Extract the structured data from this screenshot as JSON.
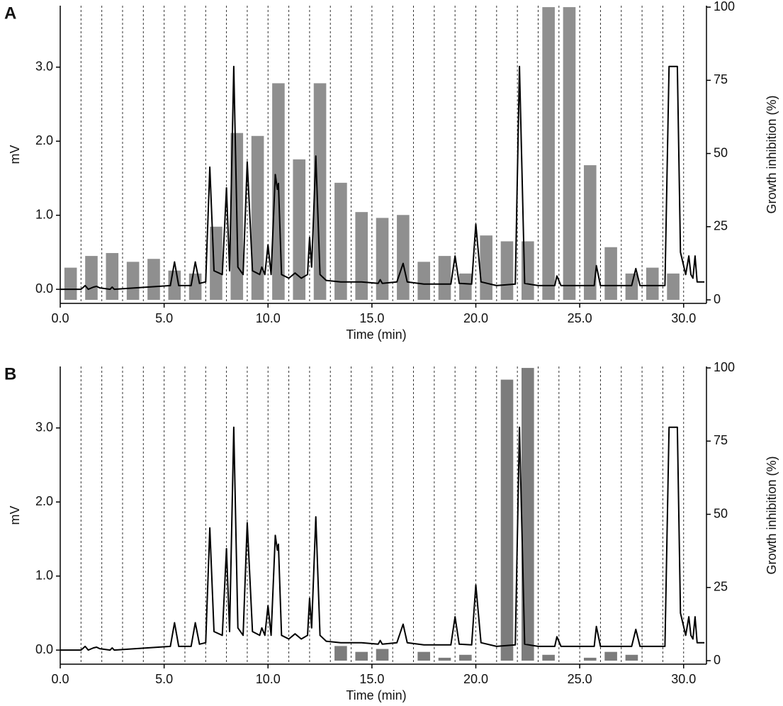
{
  "chart_data": [
    {
      "type": "combo",
      "panel_label": "A",
      "xlabel": "Time (min)",
      "ylabel": "mV",
      "y2label": "Growth inhibition (%)",
      "xlim": [
        0,
        31.1
      ],
      "ylim": [
        -0.19,
        3.83
      ],
      "y2lim": [
        -1.2,
        100.5
      ],
      "xticks": [
        {
          "value": 0,
          "label": "0.0"
        },
        {
          "value": 5,
          "label": "5.0"
        },
        {
          "value": 10,
          "label": "10.0"
        },
        {
          "value": 15,
          "label": "15.0"
        },
        {
          "value": 20,
          "label": "20.0"
        },
        {
          "value": 25,
          "label": "25.0"
        },
        {
          "value": 30,
          "label": "30.0"
        }
      ],
      "yticks": [
        {
          "value": 0,
          "label": "0.0"
        },
        {
          "value": 1,
          "label": "1.0"
        },
        {
          "value": 2,
          "label": "2.0"
        },
        {
          "value": 3,
          "label": "3.0"
        }
      ],
      "y2ticks": [
        0,
        25,
        50,
        75,
        100
      ],
      "xgrid": [
        1,
        2,
        3,
        4,
        5,
        6,
        7,
        8,
        9,
        10,
        11,
        12,
        13,
        14,
        15,
        16,
        17,
        18,
        19,
        20,
        21,
        22,
        23,
        24,
        25,
        26,
        27,
        28,
        29,
        30
      ],
      "series": [
        {
          "type": "bar",
          "axis": "y2",
          "color": "#8f8f8f",
          "x": [
            0.5,
            1.5,
            2.5,
            3.5,
            4.5,
            5.5,
            6.5,
            7.5,
            8.5,
            9.5,
            10.5,
            11.5,
            12.5,
            13.5,
            14.5,
            15.5,
            16.5,
            17.5,
            18.5,
            19.5,
            20.5,
            21.5,
            22.5,
            23.5,
            24.5,
            25.5,
            26.5,
            27.5,
            28.5,
            29.5
          ],
          "values": [
            11,
            15,
            16,
            13,
            14,
            10,
            9,
            25,
            57,
            56,
            74,
            48,
            74,
            40,
            30,
            28,
            29,
            13,
            15,
            9,
            22,
            20,
            20,
            100,
            100,
            46,
            18,
            9,
            11,
            9
          ]
        },
        {
          "type": "line",
          "color": "#000000",
          "x": [
            0,
            1.0,
            1.2,
            1.35,
            1.6,
            1.75,
            1.9,
            2.4,
            2.5,
            2.6,
            5.3,
            5.5,
            5.7,
            6.3,
            6.5,
            6.7,
            7.0,
            7.2,
            7.4,
            7.8,
            8.0,
            8.15,
            8.35,
            8.55,
            8.8,
            9.0,
            9.25,
            9.6,
            9.7,
            9.85,
            10.0,
            10.15,
            10.35,
            10.45,
            10.5,
            10.65,
            11.0,
            11.3,
            11.6,
            11.9,
            12.0,
            12.1,
            12.3,
            12.5,
            12.8,
            13.5,
            14.5,
            15.3,
            15.4,
            15.5,
            16.2,
            16.5,
            16.7,
            17.5,
            18.8,
            19.0,
            19.2,
            19.8,
            20.0,
            20.25,
            21.0,
            21.9,
            22.1,
            22.35,
            23.0,
            23.8,
            23.9,
            24.1,
            25.7,
            25.8,
            26.0,
            27.5,
            27.7,
            27.9,
            29.1,
            29.3,
            29.7,
            29.85,
            30.1,
            30.25,
            30.35,
            30.45,
            30.55,
            30.65,
            31.0
          ],
          "values": [
            0,
            0,
            0.05,
            0,
            0.03,
            0.04,
            0.02,
            0,
            0.03,
            0,
            0.05,
            0.37,
            0.05,
            0.05,
            0.37,
            0.08,
            0.1,
            1.65,
            0.25,
            0.2,
            1.37,
            0.25,
            3.01,
            0.3,
            0.2,
            1.72,
            0.25,
            0.2,
            0.3,
            0.2,
            0.6,
            0.2,
            1.55,
            1.35,
            1.43,
            0.2,
            0.15,
            0.22,
            0.15,
            0.2,
            0.7,
            0.3,
            1.8,
            0.2,
            0.12,
            0.1,
            0.1,
            0.08,
            0.13,
            0.08,
            0.1,
            0.35,
            0.1,
            0.07,
            0.07,
            0.45,
            0.08,
            0.07,
            0.88,
            0.1,
            0.05,
            0.07,
            3.01,
            0.08,
            0.05,
            0.05,
            0.18,
            0.05,
            0.05,
            0.32,
            0.05,
            0.05,
            0.28,
            0.05,
            0.05,
            3.01,
            3.01,
            0.5,
            0.2,
            0.45,
            0.2,
            0.15,
            0.45,
            0.1,
            0.1
          ]
        }
      ]
    },
    {
      "type": "combo",
      "panel_label": "B",
      "xlabel": "Time (min)",
      "ylabel": "mV",
      "y2label": "Growth inhibition (%)",
      "xlim": [
        0,
        31.1
      ],
      "ylim": [
        -0.19,
        3.83
      ],
      "y2lim": [
        -1.2,
        100.5
      ],
      "xticks": [
        {
          "value": 0,
          "label": "0.0"
        },
        {
          "value": 5,
          "label": "5.0"
        },
        {
          "value": 10,
          "label": "10.0"
        },
        {
          "value": 15,
          "label": "15.0"
        },
        {
          "value": 20,
          "label": "20.0"
        },
        {
          "value": 25,
          "label": "25.0"
        },
        {
          "value": 30,
          "label": "30.0"
        }
      ],
      "yticks": [
        {
          "value": 0,
          "label": "0.0"
        },
        {
          "value": 1,
          "label": "1.0"
        },
        {
          "value": 2,
          "label": "2.0"
        },
        {
          "value": 3,
          "label": "3.0"
        }
      ],
      "y2ticks": [
        0,
        25,
        50,
        75,
        100
      ],
      "xgrid": [
        1,
        2,
        3,
        4,
        5,
        6,
        7,
        8,
        9,
        10,
        11,
        12,
        13,
        14,
        15,
        16,
        17,
        18,
        19,
        20,
        21,
        22,
        23,
        24,
        25,
        26,
        27,
        28,
        29,
        30
      ],
      "series": [
        {
          "type": "bar",
          "axis": "y2",
          "color": "#7c7c7c",
          "x": [
            13.5,
            14.5,
            15.5,
            17.5,
            18.5,
            19.5,
            21.5,
            22.5,
            23.5,
            25.5,
            26.5,
            27.5
          ],
          "values": [
            5,
            3,
            4,
            3,
            1,
            2,
            96,
            100,
            2,
            1,
            3,
            2
          ]
        },
        {
          "type": "line",
          "color": "#000000",
          "x": [
            0,
            1.0,
            1.2,
            1.35,
            1.6,
            1.75,
            1.9,
            2.4,
            2.5,
            2.6,
            5.3,
            5.5,
            5.7,
            6.3,
            6.5,
            6.7,
            7.0,
            7.2,
            7.4,
            7.8,
            8.0,
            8.15,
            8.35,
            8.55,
            8.8,
            9.0,
            9.25,
            9.6,
            9.7,
            9.85,
            10.0,
            10.15,
            10.35,
            10.45,
            10.5,
            10.65,
            11.0,
            11.3,
            11.6,
            11.9,
            12.0,
            12.1,
            12.3,
            12.5,
            12.8,
            13.5,
            14.5,
            15.3,
            15.4,
            15.5,
            16.2,
            16.5,
            16.7,
            17.5,
            18.8,
            19.0,
            19.2,
            19.8,
            20.0,
            20.25,
            21.0,
            21.9,
            22.1,
            22.35,
            23.0,
            23.8,
            23.9,
            24.1,
            25.7,
            25.8,
            26.0,
            27.5,
            27.7,
            27.9,
            29.1,
            29.3,
            29.7,
            29.85,
            30.1,
            30.25,
            30.35,
            30.45,
            30.55,
            30.65,
            31.0
          ],
          "values": [
            0,
            0,
            0.05,
            0,
            0.03,
            0.04,
            0.02,
            0,
            0.03,
            0,
            0.05,
            0.37,
            0.05,
            0.05,
            0.37,
            0.08,
            0.1,
            1.65,
            0.25,
            0.2,
            1.37,
            0.25,
            3.01,
            0.3,
            0.2,
            1.72,
            0.25,
            0.2,
            0.3,
            0.2,
            0.6,
            0.2,
            1.55,
            1.35,
            1.43,
            0.2,
            0.15,
            0.22,
            0.15,
            0.2,
            0.7,
            0.3,
            1.8,
            0.2,
            0.12,
            0.1,
            0.1,
            0.08,
            0.13,
            0.08,
            0.1,
            0.35,
            0.1,
            0.07,
            0.07,
            0.45,
            0.08,
            0.07,
            0.88,
            0.1,
            0.05,
            0.07,
            3.01,
            0.08,
            0.05,
            0.05,
            0.18,
            0.05,
            0.05,
            0.32,
            0.05,
            0.05,
            0.28,
            0.05,
            0.05,
            3.01,
            3.01,
            0.5,
            0.2,
            0.45,
            0.2,
            0.15,
            0.45,
            0.1,
            0.1
          ]
        }
      ]
    }
  ]
}
